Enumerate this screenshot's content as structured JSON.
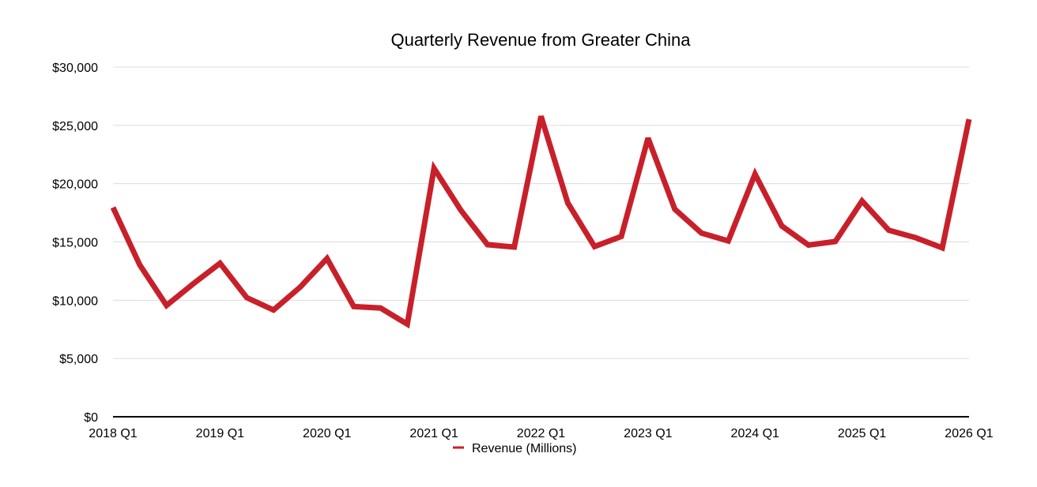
{
  "chart_data": {
    "type": "line",
    "title": "Quarterly Revenue from Greater China",
    "xlabel": "",
    "ylabel": "",
    "ylim": [
      0,
      30000
    ],
    "y_ticks": [
      "$0",
      "$5,000",
      "$10,000",
      "$15,000",
      "$20,000",
      "$25,000",
      "$30,000"
    ],
    "y_tick_values": [
      0,
      5000,
      10000,
      15000,
      20000,
      25000,
      30000
    ],
    "x_tick_labels": [
      "2018 Q1",
      "2019 Q1",
      "2020 Q1",
      "2021 Q1",
      "2022 Q1",
      "2023 Q1",
      "2024 Q1",
      "2025 Q1",
      "2026 Q1"
    ],
    "grid": true,
    "legend_position": "bottom",
    "x": [
      "2018 Q1",
      "2018 Q2",
      "2018 Q3",
      "2018 Q4",
      "2019 Q1",
      "2019 Q2",
      "2019 Q3",
      "2019 Q4",
      "2020 Q1",
      "2020 Q2",
      "2020 Q3",
      "2020 Q4",
      "2021 Q1",
      "2021 Q2",
      "2021 Q3",
      "2021 Q4",
      "2022 Q1",
      "2022 Q2",
      "2022 Q3",
      "2022 Q4",
      "2023 Q1",
      "2023 Q2",
      "2023 Q3",
      "2023 Q4",
      "2024 Q1",
      "2024 Q2",
      "2024 Q3",
      "2024 Q4",
      "2025 Q1",
      "2025 Q2",
      "2025 Q3",
      "2025 Q4",
      "2026 Q1"
    ],
    "series": [
      {
        "name": "Revenue (Millions)",
        "color": "#c8202a",
        "values": [
          17956,
          13024,
          9551,
          11411,
          13169,
          10218,
          9157,
          11134,
          13578,
          9455,
          9329,
          7946,
          21313,
          17728,
          14762,
          14563,
          25783,
          18343,
          14604,
          15470,
          23905,
          17812,
          15758,
          15084,
          20819,
          16372,
          14728,
          15033,
          18513,
          16002,
          15369,
          14493,
          25526
        ]
      }
    ]
  }
}
